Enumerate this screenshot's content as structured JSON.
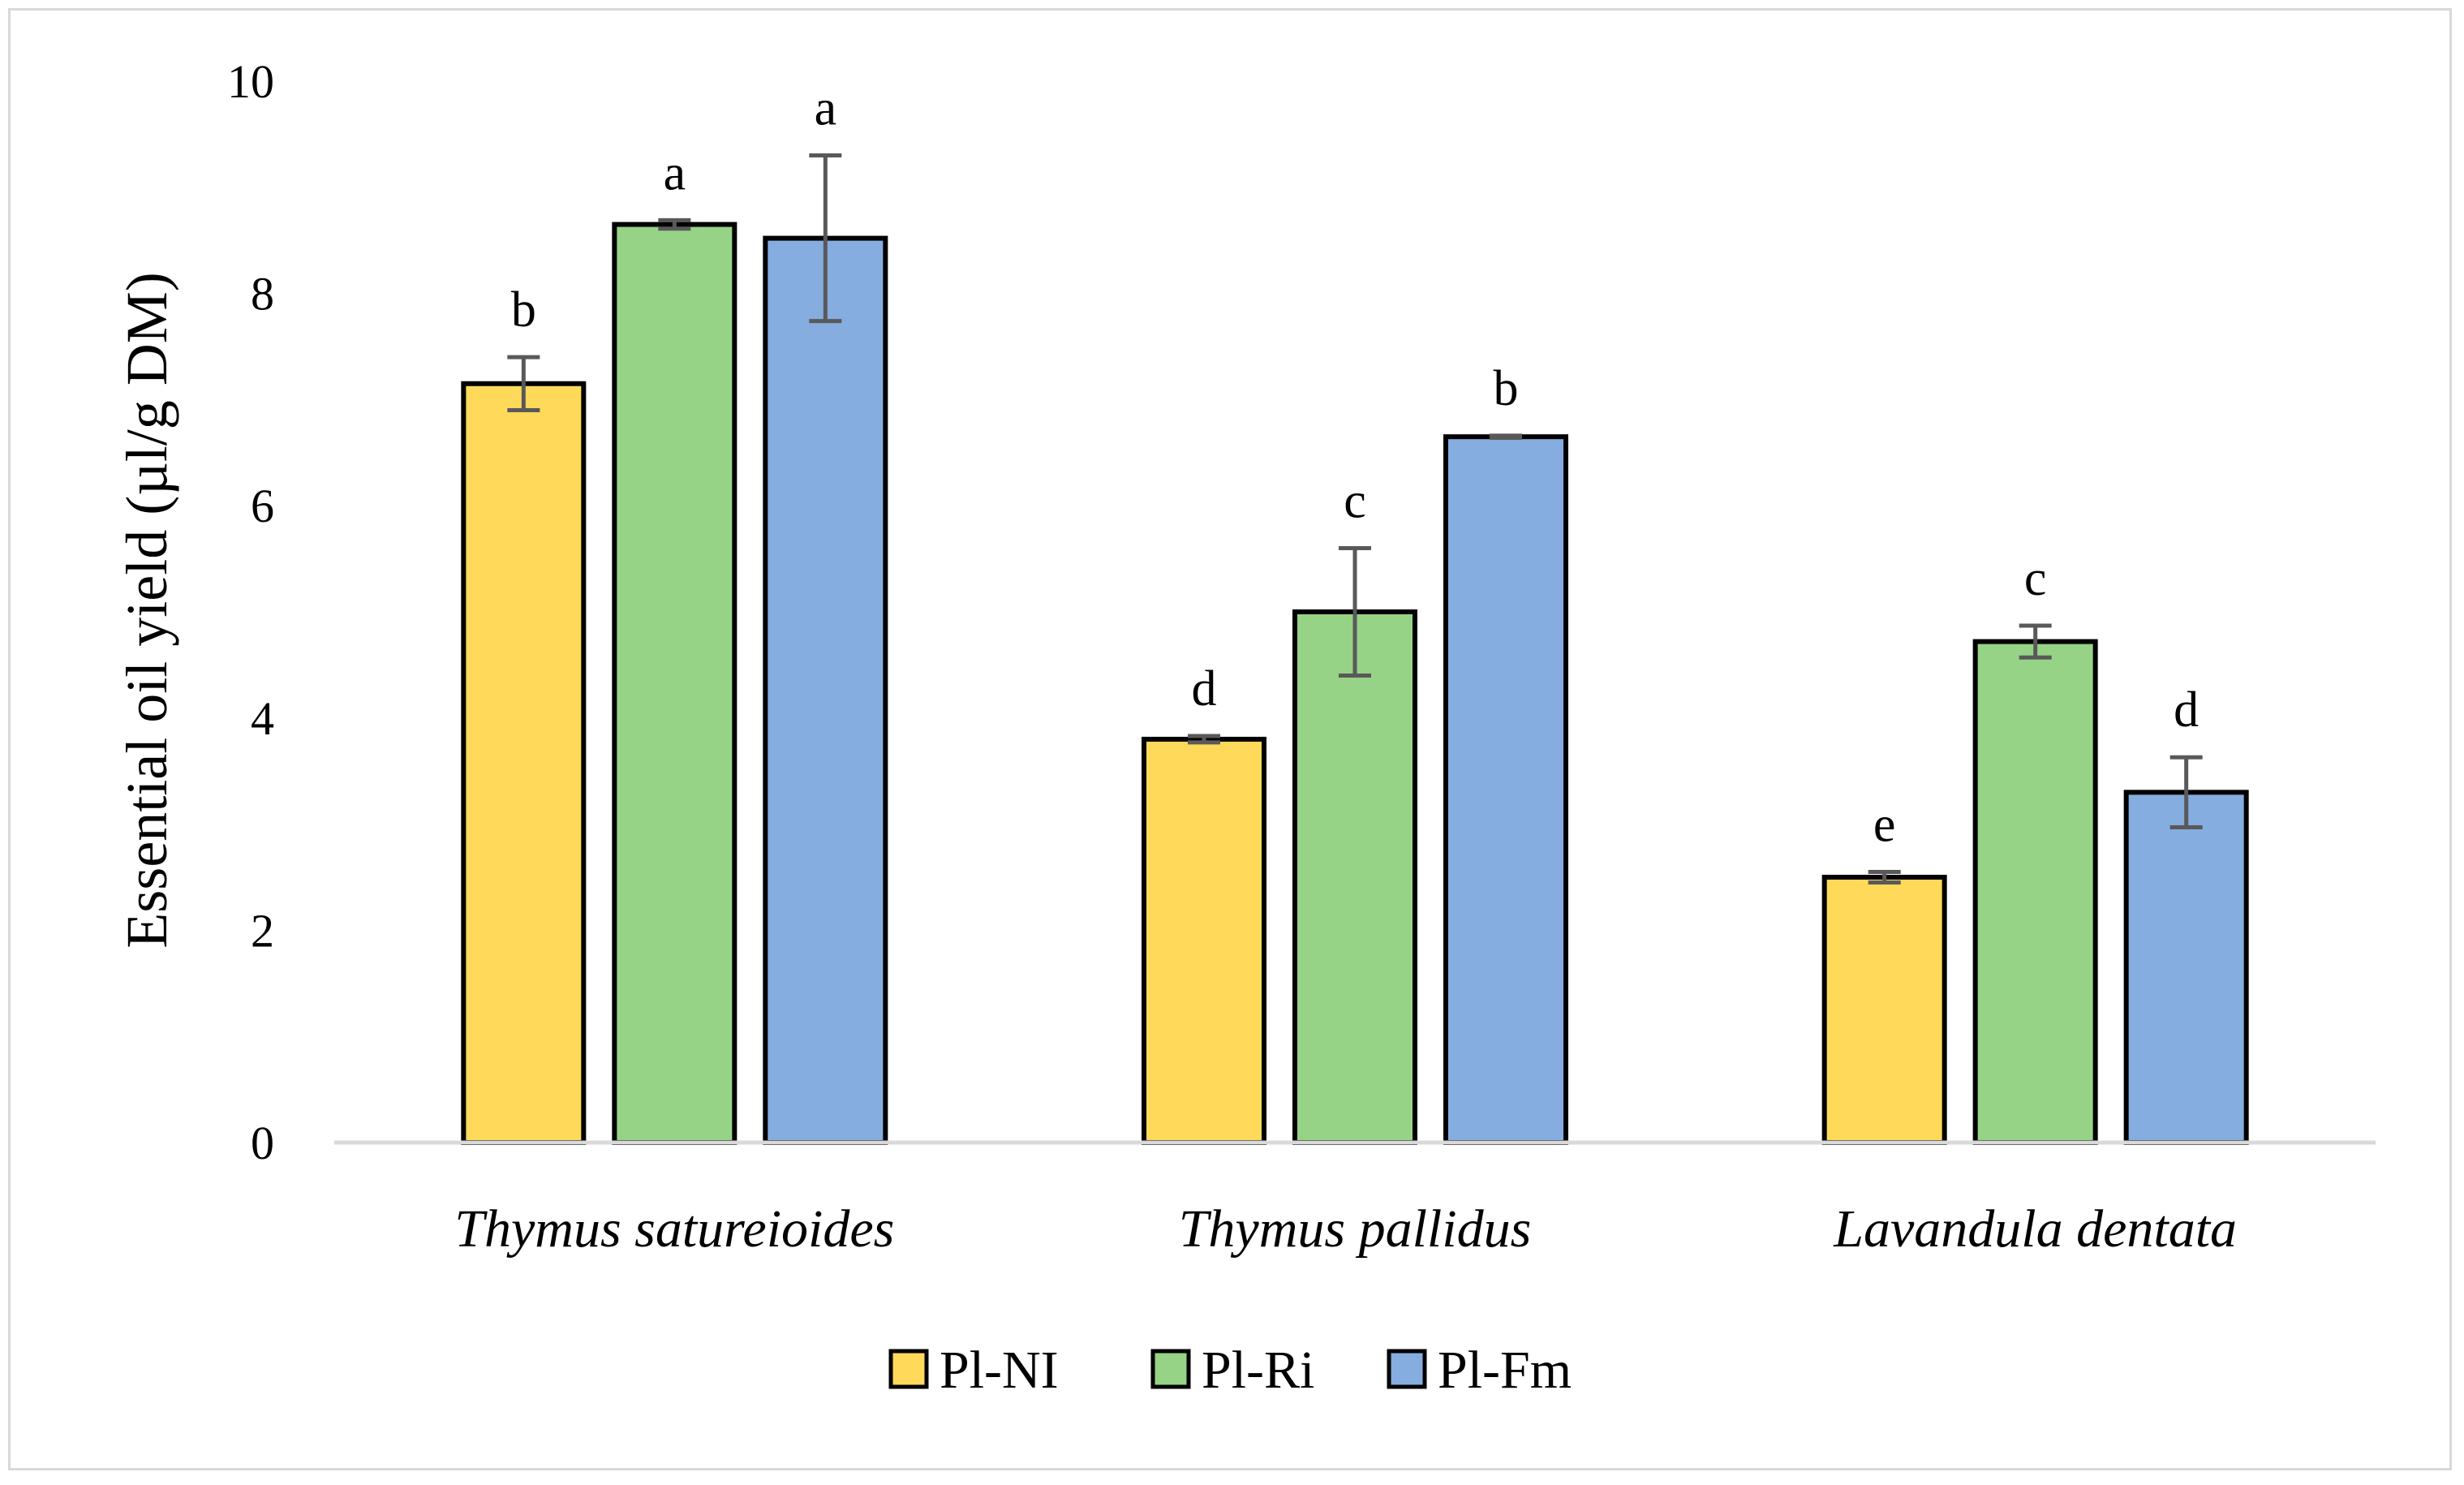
{
  "chart_data": {
    "type": "bar",
    "title": "",
    "xlabel": "",
    "ylabel": "Essential oil yield (µl/g DM)",
    "ylim": [
      0,
      10
    ],
    "yticks": [
      0,
      2,
      4,
      6,
      8,
      10
    ],
    "grid": false,
    "legend_position": "bottom",
    "categories": [
      "Thymus satureioides",
      "Thymus pallidus",
      "Lavandula dentata"
    ],
    "series": [
      {
        "name": "Pl-NI",
        "color": "#FFD95A",
        "values": [
          7.15,
          3.8,
          2.5
        ],
        "errors": [
          0.25,
          0.03,
          0.05
        ],
        "letters": [
          "b",
          "d",
          "e"
        ]
      },
      {
        "name": "Pl-Ri",
        "color": "#96D386",
        "values": [
          8.65,
          5.0,
          4.72
        ],
        "errors": [
          0.04,
          0.6,
          0.15
        ],
        "letters": [
          "a",
          "c",
          "c"
        ]
      },
      {
        "name": "Pl-Fm",
        "color": "#85ADDF",
        "values": [
          8.52,
          6.65,
          3.3
        ],
        "errors": [
          0.78,
          0.01,
          0.33
        ],
        "letters": [
          "a",
          "b",
          "d"
        ]
      }
    ]
  }
}
